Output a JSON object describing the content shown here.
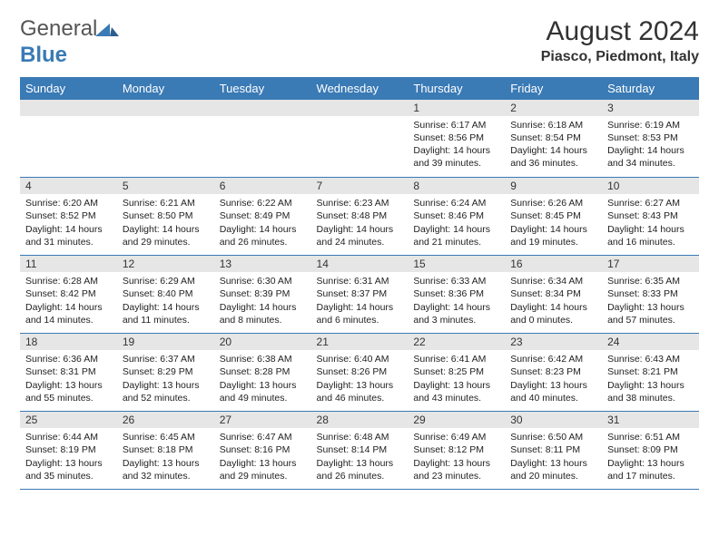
{
  "brand": {
    "part1": "General",
    "part2": "Blue"
  },
  "title": "August 2024",
  "location": "Piasco, Piedmont, Italy",
  "colors": {
    "header_bg": "#3a7ab5",
    "header_text": "#ffffff",
    "daynum_bg": "#e6e6e6",
    "border": "#3a7ab5",
    "text": "#222222",
    "page_bg": "#ffffff"
  },
  "day_headers": [
    "Sunday",
    "Monday",
    "Tuesday",
    "Wednesday",
    "Thursday",
    "Friday",
    "Saturday"
  ],
  "weeks": [
    [
      {
        "n": "",
        "lines": []
      },
      {
        "n": "",
        "lines": []
      },
      {
        "n": "",
        "lines": []
      },
      {
        "n": "",
        "lines": []
      },
      {
        "n": "1",
        "lines": [
          "Sunrise: 6:17 AM",
          "Sunset: 8:56 PM",
          "Daylight: 14 hours and 39 minutes."
        ]
      },
      {
        "n": "2",
        "lines": [
          "Sunrise: 6:18 AM",
          "Sunset: 8:54 PM",
          "Daylight: 14 hours and 36 minutes."
        ]
      },
      {
        "n": "3",
        "lines": [
          "Sunrise: 6:19 AM",
          "Sunset: 8:53 PM",
          "Daylight: 14 hours and 34 minutes."
        ]
      }
    ],
    [
      {
        "n": "4",
        "lines": [
          "Sunrise: 6:20 AM",
          "Sunset: 8:52 PM",
          "Daylight: 14 hours and 31 minutes."
        ]
      },
      {
        "n": "5",
        "lines": [
          "Sunrise: 6:21 AM",
          "Sunset: 8:50 PM",
          "Daylight: 14 hours and 29 minutes."
        ]
      },
      {
        "n": "6",
        "lines": [
          "Sunrise: 6:22 AM",
          "Sunset: 8:49 PM",
          "Daylight: 14 hours and 26 minutes."
        ]
      },
      {
        "n": "7",
        "lines": [
          "Sunrise: 6:23 AM",
          "Sunset: 8:48 PM",
          "Daylight: 14 hours and 24 minutes."
        ]
      },
      {
        "n": "8",
        "lines": [
          "Sunrise: 6:24 AM",
          "Sunset: 8:46 PM",
          "Daylight: 14 hours and 21 minutes."
        ]
      },
      {
        "n": "9",
        "lines": [
          "Sunrise: 6:26 AM",
          "Sunset: 8:45 PM",
          "Daylight: 14 hours and 19 minutes."
        ]
      },
      {
        "n": "10",
        "lines": [
          "Sunrise: 6:27 AM",
          "Sunset: 8:43 PM",
          "Daylight: 14 hours and 16 minutes."
        ]
      }
    ],
    [
      {
        "n": "11",
        "lines": [
          "Sunrise: 6:28 AM",
          "Sunset: 8:42 PM",
          "Daylight: 14 hours and 14 minutes."
        ]
      },
      {
        "n": "12",
        "lines": [
          "Sunrise: 6:29 AM",
          "Sunset: 8:40 PM",
          "Daylight: 14 hours and 11 minutes."
        ]
      },
      {
        "n": "13",
        "lines": [
          "Sunrise: 6:30 AM",
          "Sunset: 8:39 PM",
          "Daylight: 14 hours and 8 minutes."
        ]
      },
      {
        "n": "14",
        "lines": [
          "Sunrise: 6:31 AM",
          "Sunset: 8:37 PM",
          "Daylight: 14 hours and 6 minutes."
        ]
      },
      {
        "n": "15",
        "lines": [
          "Sunrise: 6:33 AM",
          "Sunset: 8:36 PM",
          "Daylight: 14 hours and 3 minutes."
        ]
      },
      {
        "n": "16",
        "lines": [
          "Sunrise: 6:34 AM",
          "Sunset: 8:34 PM",
          "Daylight: 14 hours and 0 minutes."
        ]
      },
      {
        "n": "17",
        "lines": [
          "Sunrise: 6:35 AM",
          "Sunset: 8:33 PM",
          "Daylight: 13 hours and 57 minutes."
        ]
      }
    ],
    [
      {
        "n": "18",
        "lines": [
          "Sunrise: 6:36 AM",
          "Sunset: 8:31 PM",
          "Daylight: 13 hours and 55 minutes."
        ]
      },
      {
        "n": "19",
        "lines": [
          "Sunrise: 6:37 AM",
          "Sunset: 8:29 PM",
          "Daylight: 13 hours and 52 minutes."
        ]
      },
      {
        "n": "20",
        "lines": [
          "Sunrise: 6:38 AM",
          "Sunset: 8:28 PM",
          "Daylight: 13 hours and 49 minutes."
        ]
      },
      {
        "n": "21",
        "lines": [
          "Sunrise: 6:40 AM",
          "Sunset: 8:26 PM",
          "Daylight: 13 hours and 46 minutes."
        ]
      },
      {
        "n": "22",
        "lines": [
          "Sunrise: 6:41 AM",
          "Sunset: 8:25 PM",
          "Daylight: 13 hours and 43 minutes."
        ]
      },
      {
        "n": "23",
        "lines": [
          "Sunrise: 6:42 AM",
          "Sunset: 8:23 PM",
          "Daylight: 13 hours and 40 minutes."
        ]
      },
      {
        "n": "24",
        "lines": [
          "Sunrise: 6:43 AM",
          "Sunset: 8:21 PM",
          "Daylight: 13 hours and 38 minutes."
        ]
      }
    ],
    [
      {
        "n": "25",
        "lines": [
          "Sunrise: 6:44 AM",
          "Sunset: 8:19 PM",
          "Daylight: 13 hours and 35 minutes."
        ]
      },
      {
        "n": "26",
        "lines": [
          "Sunrise: 6:45 AM",
          "Sunset: 8:18 PM",
          "Daylight: 13 hours and 32 minutes."
        ]
      },
      {
        "n": "27",
        "lines": [
          "Sunrise: 6:47 AM",
          "Sunset: 8:16 PM",
          "Daylight: 13 hours and 29 minutes."
        ]
      },
      {
        "n": "28",
        "lines": [
          "Sunrise: 6:48 AM",
          "Sunset: 8:14 PM",
          "Daylight: 13 hours and 26 minutes."
        ]
      },
      {
        "n": "29",
        "lines": [
          "Sunrise: 6:49 AM",
          "Sunset: 8:12 PM",
          "Daylight: 13 hours and 23 minutes."
        ]
      },
      {
        "n": "30",
        "lines": [
          "Sunrise: 6:50 AM",
          "Sunset: 8:11 PM",
          "Daylight: 13 hours and 20 minutes."
        ]
      },
      {
        "n": "31",
        "lines": [
          "Sunrise: 6:51 AM",
          "Sunset: 8:09 PM",
          "Daylight: 13 hours and 17 minutes."
        ]
      }
    ]
  ]
}
